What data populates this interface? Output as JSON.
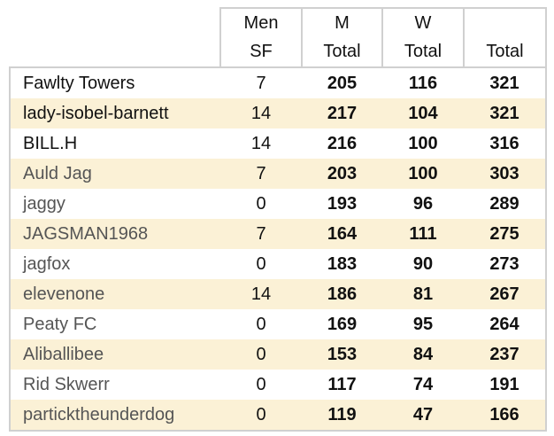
{
  "header": {
    "row1": [
      "Men",
      "M",
      "W",
      ""
    ],
    "row2": [
      "SF",
      "Total",
      "Total",
      "Total"
    ]
  },
  "rows": [
    {
      "name": "Fawlty Towers",
      "sf": "7",
      "m": "205",
      "w": "116",
      "total": "321"
    },
    {
      "name": "lady-isobel-barnett",
      "sf": "14",
      "m": "217",
      "w": "104",
      "total": "321"
    },
    {
      "name": "BILL.H",
      "sf": "14",
      "m": "216",
      "w": "100",
      "total": "316"
    },
    {
      "name": "Auld Jag",
      "sf": "7",
      "m": "203",
      "w": "100",
      "total": "303"
    },
    {
      "name": "jaggy",
      "sf": "0",
      "m": "193",
      "w": "96",
      "total": "289"
    },
    {
      "name": "JAGSMAN1968",
      "sf": "7",
      "m": "164",
      "w": "111",
      "total": "275"
    },
    {
      "name": "jagfox",
      "sf": "0",
      "m": "183",
      "w": "90",
      "total": "273"
    },
    {
      "name": "elevenone",
      "sf": "14",
      "m": "186",
      "w": "81",
      "total": "267"
    },
    {
      "name": "Peaty FC",
      "sf": "0",
      "m": "169",
      "w": "95",
      "total": "264"
    },
    {
      "name": "Aliballibee",
      "sf": "0",
      "m": "153",
      "w": "84",
      "total": "237"
    },
    {
      "name": "Rid Skwerr",
      "sf": "0",
      "m": "117",
      "w": "74",
      "total": "191"
    },
    {
      "name": "particktheunderdog",
      "sf": "0",
      "m": "119",
      "w": "47",
      "total": "166"
    }
  ],
  "colors": {
    "stripe": "#fbf1d6",
    "border": "#d0d0d0"
  }
}
